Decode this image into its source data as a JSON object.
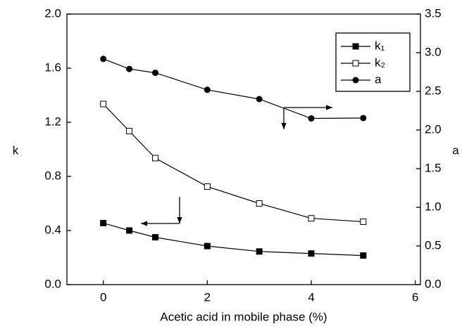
{
  "chart_data": {
    "type": "line",
    "x_label": "Acetic acid in mobile phase (%)",
    "y_label": "k",
    "y2_label": "a",
    "x": [
      0,
      0.5,
      1,
      2,
      3,
      4,
      5
    ],
    "xlim": [
      -0.7,
      6.1
    ],
    "xticks": [
      0,
      2,
      4,
      6
    ],
    "ylim": [
      0,
      2
    ],
    "yticks": [
      {
        "value": 0,
        "label": "0.0"
      },
      {
        "value": 0.4,
        "label": "0.4"
      },
      {
        "value": 0.8,
        "label": "0.8"
      },
      {
        "value": 1.2,
        "label": "1.2"
      },
      {
        "value": 1.6,
        "label": "1.6"
      },
      {
        "value": 2,
        "label": "2.0"
      }
    ],
    "y2lim": [
      0,
      3.5
    ],
    "y2ticks": [
      {
        "value": 0,
        "label": "0.0"
      },
      0.5,
      {
        "value": 1,
        "label": "1.0"
      },
      1.5,
      {
        "value": 2,
        "label": "2.0"
      },
      2.5,
      {
        "value": 3,
        "label": "3.0"
      },
      3.5
    ],
    "series": [
      {
        "name": "k₁",
        "color": "#000000",
        "marker": "filled-square",
        "values": [
          0.455,
          0.4,
          0.35,
          0.285,
          0.245,
          0.23,
          0.215
        ]
      },
      {
        "name": "k₂",
        "color": "#000000",
        "marker": "open-square",
        "values": [
          1.335,
          1.135,
          0.935,
          0.725,
          0.6,
          0.49,
          0.465
        ]
      },
      {
        "name": "a",
        "color": "#000000",
        "marker": "filled-circle",
        "axis": "y2",
        "values": [
          2.92,
          2.79,
          2.74,
          2.52,
          2.4,
          2.15,
          2.155
        ]
      }
    ]
  }
}
